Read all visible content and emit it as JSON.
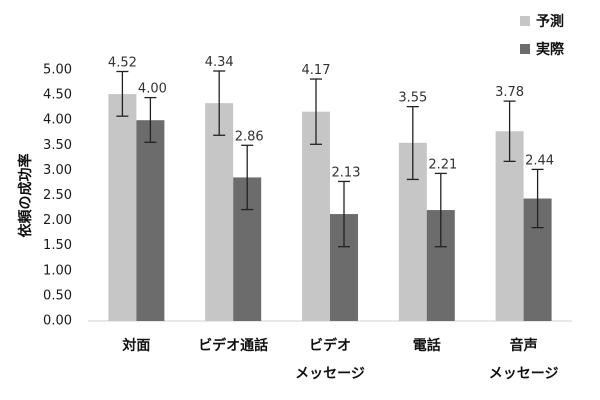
{
  "chart_data": {
    "type": "bar",
    "ylabel": "依頼の成功率",
    "ylim": [
      0,
      5
    ],
    "yticks": [
      "0.00",
      "0.50",
      "1.00",
      "1.50",
      "2.00",
      "2.50",
      "3.00",
      "3.50",
      "4.00",
      "4.50",
      "5.00"
    ],
    "categories": [
      [
        "対面"
      ],
      [
        "ビデオ通話"
      ],
      [
        "ビデオ",
        "メッセージ"
      ],
      [
        "電話"
      ],
      [
        "音声",
        "メッセージ"
      ]
    ],
    "series": [
      {
        "name": "予測",
        "color": "#c6c6c6",
        "values": [
          4.52,
          4.34,
          4.17,
          3.55,
          3.78
        ],
        "labels": [
          "4.52",
          "4.34",
          "4.17",
          "3.55",
          "3.78"
        ],
        "err_low": [
          4.08,
          3.7,
          3.52,
          2.82,
          3.18
        ],
        "err_high": [
          4.97,
          4.98,
          4.82,
          4.27,
          4.38
        ]
      },
      {
        "name": "実際",
        "color": "#6c6c6c",
        "values": [
          4.0,
          2.86,
          2.13,
          2.21,
          2.44
        ],
        "labels": [
          "4.00",
          "2.86",
          "2.13",
          "2.21",
          "2.44"
        ],
        "err_low": [
          3.56,
          2.22,
          1.48,
          1.48,
          1.86
        ],
        "err_high": [
          4.45,
          3.5,
          2.78,
          2.94,
          3.02
        ]
      }
    ],
    "legend_position": "top-right",
    "grid": false
  }
}
